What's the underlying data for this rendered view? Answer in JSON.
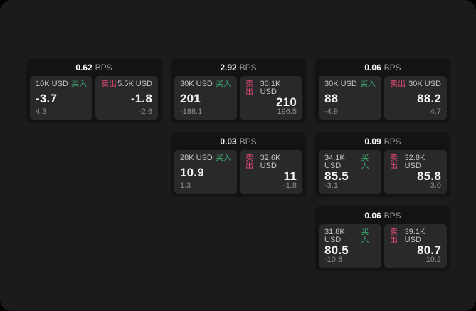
{
  "labels": {
    "buy": "买入",
    "sell": "卖出",
    "bps": "BPS"
  },
  "colors": {
    "page_background": "#000000",
    "window_background": "#1b1b1d",
    "card_background": "#131314",
    "panel_background": "#29292b",
    "buy_green": "#3cab70",
    "sell_red": "#dd4a6e",
    "value_white": "#f5f5f5",
    "muted_gray": "#8e8e90"
  },
  "cards": [
    {
      "bps_value": "0.62",
      "buy": {
        "size": "10K USD",
        "price": "-3.7",
        "change": "4.3"
      },
      "sell": {
        "size": "5.5K USD",
        "price": "-1.8",
        "change": "-2.6"
      }
    },
    {
      "bps_value": "2.92",
      "buy": {
        "size": "30K USD",
        "price": "201",
        "change": "-188.1"
      },
      "sell": {
        "size": "30.1K USD",
        "price": "210",
        "change": "196.5"
      }
    },
    {
      "bps_value": "0.06",
      "buy": {
        "size": "30K USD",
        "price": "88",
        "change": "-4.9"
      },
      "sell": {
        "size": "30K USD",
        "price": "88.2",
        "change": "4.7"
      }
    },
    {
      "bps_value": "0.03",
      "buy": {
        "size": "28K USD",
        "price": "10.9",
        "change": "1.3"
      },
      "sell": {
        "size": "32.6K USD",
        "price": "11",
        "change": "-1.8"
      }
    },
    {
      "bps_value": "0.09",
      "buy": {
        "size": "34.1K USD",
        "price": "85.5",
        "change": "-3.1"
      },
      "sell": {
        "size": "32.8K USD",
        "price": "85.8",
        "change": "3.0"
      }
    },
    {
      "bps_value": "0.06",
      "buy": {
        "size": "31.8K USD",
        "price": "80.5",
        "change": "-10.8"
      },
      "sell": {
        "size": "39.1K USD",
        "price": "80.7",
        "change": "10.2"
      }
    }
  ]
}
